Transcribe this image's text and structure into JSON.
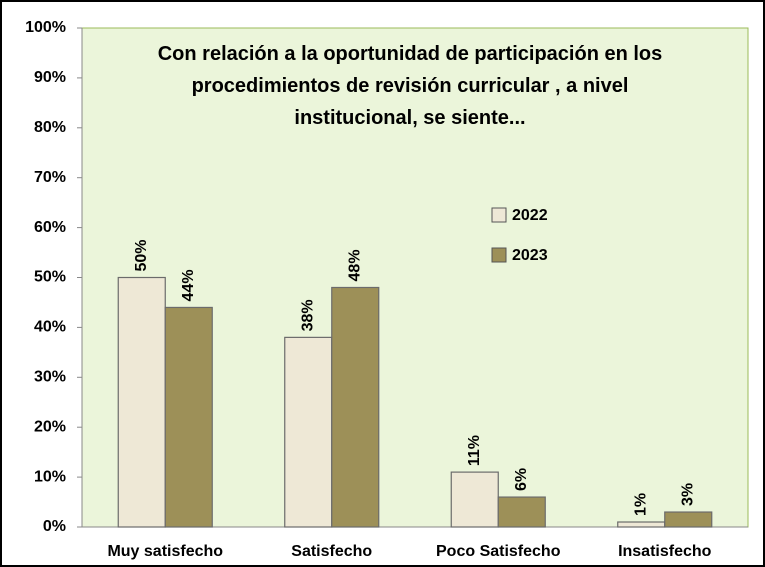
{
  "chart_data": {
    "type": "bar",
    "title": "Con relación a la oportunidad de participación en los procedimientos de revisión curricular , a nivel institucional, se siente...",
    "categories": [
      "Muy satisfecho",
      "Satisfecho",
      "Poco Satisfecho",
      "Insatisfecho"
    ],
    "series": [
      {
        "name": "2022",
        "color": "#eee8d6",
        "values": [
          50,
          38,
          11,
          1
        ],
        "value_labels": [
          "50%",
          "38%",
          "11%",
          "1%"
        ]
      },
      {
        "name": "2023",
        "color": "#9d9058",
        "values": [
          44,
          48,
          6,
          3
        ],
        "value_labels": [
          "44%",
          "48%",
          "6%",
          "3%"
        ]
      }
    ],
    "ylim": [
      0,
      100
    ],
    "yticks": [
      {
        "value": 0,
        "label": "0%"
      },
      {
        "value": 10,
        "label": "10%"
      },
      {
        "value": 20,
        "label": "20%"
      },
      {
        "value": 30,
        "label": "30%"
      },
      {
        "value": 40,
        "label": "40%"
      },
      {
        "value": 50,
        "label": "50%"
      },
      {
        "value": 60,
        "label": "60%"
      },
      {
        "value": 70,
        "label": "70%"
      },
      {
        "value": 80,
        "label": "80%"
      },
      {
        "value": 90,
        "label": "90%"
      },
      {
        "value": 100,
        "label": "100%"
      }
    ],
    "grid": false
  }
}
